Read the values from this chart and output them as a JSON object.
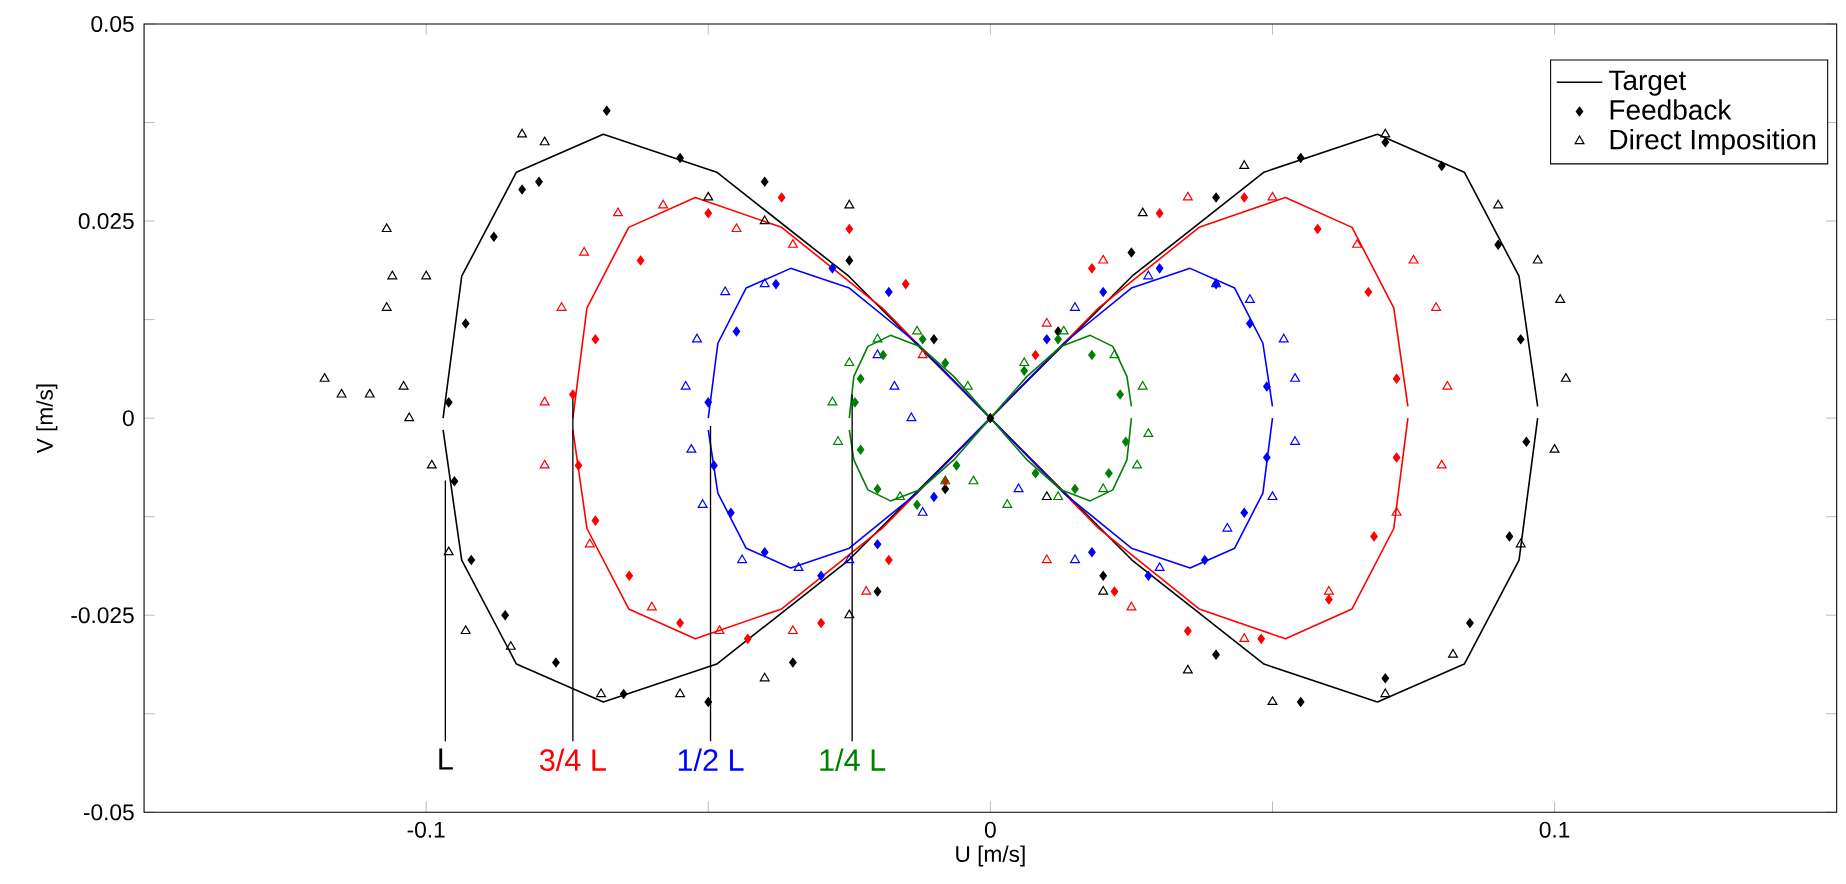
{
  "chart_data": {
    "type": "scatter",
    "xlabel": "U [m/s]",
    "ylabel": "V [m/s]",
    "xlim": [
      -0.15,
      0.15
    ],
    "ylim": [
      -0.05,
      0.05
    ],
    "xticks": [
      -0.1,
      {
        "value": -0.05,
        "label": null
      },
      0,
      {
        "value": 0.05,
        "label": null
      },
      0.1
    ],
    "yticks": [
      -0.05,
      {
        "value": -0.0375,
        "label": null
      },
      -0.025,
      {
        "value": -0.0125,
        "label": null
      },
      0,
      {
        "value": 0.0125,
        "label": null
      },
      0.025,
      {
        "value": 0.0375,
        "label": null
      },
      0.05
    ],
    "grid": false,
    "legend": "top right",
    "annotations": [
      {
        "text": "L",
        "x": -0.0966,
        "y": -0.0079
      },
      {
        "text": "3/4 L",
        "x": -0.074,
        "y": 0.003
      },
      {
        "text": "1/2 L",
        "x": -0.0496,
        "y": -0.001
      },
      {
        "text": "1/4 L",
        "x": -0.0245,
        "y": 0.003
      }
    ],
    "series": [
      {
        "name": "Target",
        "type": "line",
        "color": "#000000",
        "marker": "none",
        "line_style": "solid",
        "x": [
          -0.097,
          -0.0937,
          -0.084,
          -0.0686,
          -0.0485,
          -0.0251,
          0,
          0.0251,
          0.0485,
          0.0686,
          0.084,
          0.0937,
          0.097
        ],
        "values": [
          0,
          0.018,
          0.0312,
          0.036,
          0.0312,
          0.018,
          0,
          -0.018,
          -0.0312,
          -0.036,
          -0.0312,
          -0.018,
          0
        ]
      },
      {
        "type": "line",
        "color": "#000000",
        "marker": "none",
        "line_style": "solid",
        "x": [
          -0.097,
          -0.0937,
          -0.084,
          -0.0686,
          -0.0485,
          -0.0251,
          0,
          0.0251,
          0.0485,
          0.0686,
          0.084,
          0.0937,
          0.097
        ],
        "values": [
          -0.0015,
          -0.018,
          -0.0312,
          -0.036,
          -0.0312,
          -0.018,
          0,
          0.018,
          0.0312,
          0.036,
          0.0312,
          0.018,
          0.0015
        ]
      },
      {
        "name": "Feedback",
        "color": "#000000",
        "marker": "diamond",
        "x": [
          -0.096,
          -0.095,
          -0.092,
          -0.086,
          -0.077,
          -0.065,
          -0.05,
          -0.035,
          -0.02,
          -0.008,
          0,
          0.012,
          0.025,
          0.04,
          0.055,
          0.07,
          0.08,
          0.09,
          0.094,
          0.095,
          0.092,
          0.085,
          0.07,
          0.055,
          0.04,
          0.02,
          -0.01,
          -0.025,
          -0.04,
          -0.055,
          -0.068,
          -0.08,
          -0.088,
          -0.093,
          -0.083
        ],
        "values": [
          0.002,
          -0.008,
          -0.018,
          -0.025,
          -0.031,
          -0.035,
          -0.036,
          -0.031,
          -0.022,
          -0.009,
          0,
          0.011,
          0.021,
          0.028,
          0.033,
          0.035,
          0.032,
          0.022,
          0.01,
          -0.003,
          -0.015,
          -0.026,
          -0.033,
          -0.036,
          -0.03,
          -0.02,
          0.01,
          0.02,
          0.03,
          0.033,
          0.039,
          0.03,
          0.023,
          0.012,
          0.029
        ]
      },
      {
        "name": "Direct Imposition",
        "color": "#000000",
        "marker": "triangle",
        "x": [
          -0.118,
          -0.115,
          -0.11,
          -0.104,
          -0.107,
          -0.106,
          -0.107,
          -0.103,
          -0.099,
          -0.1,
          -0.096,
          -0.093,
          -0.085,
          -0.069,
          -0.055,
          -0.04,
          -0.025,
          0.01,
          0.02,
          0.035,
          0.05,
          0.07,
          0.082,
          0.094,
          0.1,
          0.102,
          0.101,
          0.097,
          0.09,
          0.07,
          0.045,
          0.027,
          -0.025,
          -0.04,
          -0.05,
          -0.083,
          -0.079
        ],
        "values": [
          0.005,
          0.003,
          0.003,
          0.004,
          0.024,
          0.018,
          0.014,
          0,
          -0.006,
          0.018,
          -0.017,
          -0.027,
          -0.029,
          -0.035,
          -0.035,
          -0.033,
          -0.025,
          -0.01,
          -0.022,
          -0.032,
          -0.036,
          -0.035,
          -0.03,
          -0.016,
          -0.004,
          0.005,
          0.015,
          0.02,
          0.027,
          0.036,
          0.032,
          0.026,
          0.027,
          0.025,
          0.028,
          0.036,
          0.035
        ]
      },
      {
        "type": "line",
        "color": "#ff0000",
        "marker": "none",
        "line_style": "solid",
        "x": [
          -0.074,
          -0.0715,
          -0.0641,
          -0.0523,
          -0.037,
          -0.0192,
          0,
          0.0192,
          0.037,
          0.0523,
          0.0641,
          0.0715,
          0.074
        ],
        "values": [
          0,
          0.014,
          0.0242,
          0.028,
          0.0242,
          0.014,
          0,
          -0.014,
          -0.0242,
          -0.028,
          -0.0242,
          -0.014,
          0
        ]
      },
      {
        "type": "line",
        "color": "#ff0000",
        "marker": "none",
        "line_style": "solid",
        "x": [
          -0.074,
          -0.0715,
          -0.0641,
          -0.0523,
          -0.037,
          -0.0192,
          0,
          0.0192,
          0.037,
          0.0523,
          0.0641,
          0.0715,
          0.074
        ],
        "values": [
          -0.0015,
          -0.014,
          -0.0242,
          -0.028,
          -0.0242,
          -0.014,
          0,
          0.014,
          0.0242,
          0.028,
          0.0242,
          0.014,
          0.0015
        ]
      },
      {
        "color": "#ff0000",
        "marker": "diamond",
        "x": [
          -0.074,
          -0.073,
          -0.07,
          -0.064,
          -0.055,
          -0.043,
          -0.03,
          -0.018,
          -0.008,
          0.008,
          0.018,
          0.03,
          0.045,
          0.058,
          0.067,
          0.072,
          0.072,
          0.068,
          0.06,
          0.048,
          0.035,
          0.022,
          -0.015,
          -0.025,
          -0.037,
          -0.05,
          -0.062,
          -0.07
        ],
        "values": [
          0.003,
          -0.006,
          -0.013,
          -0.02,
          -0.026,
          -0.028,
          -0.026,
          -0.018,
          -0.008,
          0.008,
          0.019,
          0.026,
          0.028,
          0.024,
          0.016,
          0.005,
          -0.005,
          -0.015,
          -0.023,
          -0.028,
          -0.027,
          -0.022,
          0.017,
          0.024,
          0.028,
          0.026,
          0.02,
          0.01
        ]
      },
      {
        "color": "#ff0000",
        "marker": "triangle",
        "x": [
          -0.079,
          -0.079,
          -0.076,
          -0.072,
          -0.066,
          -0.058,
          -0.045,
          -0.035,
          -0.071,
          -0.06,
          -0.048,
          -0.035,
          -0.022,
          -0.012,
          0.01,
          0.025,
          0.045,
          0.06,
          0.072,
          0.08,
          0.081,
          0.079,
          0.075,
          0.065,
          0.05,
          0.035,
          0.02,
          0.01
        ],
        "values": [
          0.002,
          -0.006,
          0.014,
          0.021,
          0.026,
          0.027,
          0.024,
          0.022,
          -0.016,
          -0.024,
          -0.027,
          -0.027,
          -0.022,
          0.008,
          -0.018,
          -0.024,
          -0.028,
          -0.022,
          -0.012,
          -0.006,
          0.004,
          0.014,
          0.02,
          0.022,
          0.028,
          0.028,
          0.02,
          0.012
        ]
      },
      {
        "type": "line",
        "color": "#0000ff",
        "marker": "none",
        "line_style": "solid",
        "x": [
          -0.05,
          -0.0483,
          -0.0433,
          -0.0354,
          -0.025,
          -0.013,
          0,
          0.013,
          0.025,
          0.0354,
          0.0433,
          0.0483,
          0.05
        ],
        "values": [
          0,
          0.0095,
          0.0165,
          0.019,
          0.0165,
          0.0095,
          0,
          -0.0095,
          -0.0165,
          -0.019,
          -0.0165,
          -0.0095,
          0
        ]
      },
      {
        "type": "line",
        "color": "#0000ff",
        "marker": "none",
        "line_style": "solid",
        "x": [
          -0.05,
          -0.0483,
          -0.0433,
          -0.0354,
          -0.025,
          -0.013,
          0,
          0.013,
          0.025,
          0.0354,
          0.0433,
          0.0483,
          0.05
        ],
        "values": [
          -0.0015,
          -0.0095,
          -0.0165,
          -0.019,
          -0.0165,
          -0.0095,
          0,
          0.0095,
          0.0165,
          0.019,
          0.0165,
          0.0095,
          0.0015
        ]
      },
      {
        "color": "#0000ff",
        "marker": "diamond",
        "x": [
          -0.05,
          -0.049,
          -0.046,
          -0.04,
          -0.03,
          -0.02,
          -0.01,
          0.01,
          0.02,
          0.03,
          0.04,
          0.046,
          0.049,
          0.049,
          0.045,
          0.038,
          0.028,
          0.018,
          -0.018,
          -0.028,
          -0.038,
          -0.045
        ],
        "values": [
          0.002,
          -0.006,
          -0.012,
          -0.017,
          -0.02,
          -0.016,
          -0.01,
          0.01,
          0.016,
          0.019,
          0.017,
          0.012,
          0.004,
          -0.005,
          -0.012,
          -0.018,
          -0.02,
          -0.017,
          0.016,
          0.019,
          0.017,
          0.011
        ]
      },
      {
        "color": "#0000ff",
        "marker": "triangle",
        "x": [
          -0.054,
          -0.053,
          -0.051,
          -0.044,
          -0.034,
          -0.025,
          -0.012,
          -0.02,
          -0.017,
          -0.014,
          -0.052,
          -0.047,
          -0.04,
          0.005,
          0.015,
          0.03,
          0.042,
          0.05,
          0.054,
          0.054,
          0.052,
          0.046,
          0.04,
          0.028,
          0.015
        ],
        "values": [
          0.004,
          -0.004,
          -0.011,
          -0.018,
          -0.019,
          -0.018,
          -0.012,
          0.008,
          0.004,
          0,
          0.01,
          0.016,
          0.017,
          -0.009,
          -0.018,
          -0.019,
          -0.014,
          -0.01,
          -0.003,
          0.005,
          0.01,
          0.015,
          0.017,
          0.018,
          0.014
        ]
      },
      {
        "type": "line",
        "color": "#008000",
        "marker": "none",
        "line_style": "solid",
        "x": [
          -0.025,
          -0.0242,
          -0.0217,
          -0.0177,
          -0.0125,
          -0.0065,
          0,
          0.0065,
          0.0125,
          0.0177,
          0.0217,
          0.0242,
          0.025
        ],
        "values": [
          0,
          0.0053,
          0.0091,
          0.0105,
          0.0091,
          0.0053,
          0,
          -0.0053,
          -0.0091,
          -0.0105,
          -0.0091,
          -0.0053,
          0
        ]
      },
      {
        "type": "line",
        "color": "#008000",
        "marker": "none",
        "line_style": "solid",
        "x": [
          -0.025,
          -0.0242,
          -0.0217,
          -0.0177,
          -0.0125,
          -0.0065,
          0,
          0.0065,
          0.0125,
          0.0177,
          0.0217,
          0.0242,
          0.025
        ],
        "values": [
          -0.0015,
          -0.0053,
          -0.0091,
          -0.0105,
          -0.0091,
          -0.0053,
          0,
          0.0053,
          0.0091,
          0.0105,
          0.0091,
          0.0053,
          0.0015
        ]
      },
      {
        "color": "#008000",
        "marker": "diamond",
        "x": [
          -0.024,
          -0.023,
          -0.02,
          -0.013,
          -0.006,
          0.006,
          0.012,
          0.018,
          0.023,
          0.024,
          0.021,
          0.015,
          0.008,
          -0.008,
          -0.012,
          -0.019,
          -0.023
        ],
        "values": [
          0.002,
          -0.004,
          -0.009,
          -0.011,
          -0.006,
          0.006,
          0.01,
          0.008,
          0.003,
          -0.003,
          -0.007,
          -0.009,
          -0.007,
          0.007,
          0.01,
          0.008,
          0.005
        ]
      },
      {
        "color": "#008000",
        "marker": "triangle",
        "x": [
          -0.028,
          -0.027,
          -0.025,
          -0.02,
          -0.013,
          -0.016,
          -0.008,
          -0.004,
          0.006,
          0.013,
          0.022,
          0.027,
          0.028,
          0.026,
          0.02,
          0.012,
          0.003,
          -0.003
        ],
        "values": [
          0.002,
          -0.003,
          0.007,
          0.01,
          0.011,
          -0.01,
          -0.008,
          0.004,
          0.007,
          0.011,
          0.008,
          0.004,
          -0.002,
          -0.006,
          -0.009,
          -0.01,
          -0.011,
          -0.008
        ]
      }
    ]
  }
}
